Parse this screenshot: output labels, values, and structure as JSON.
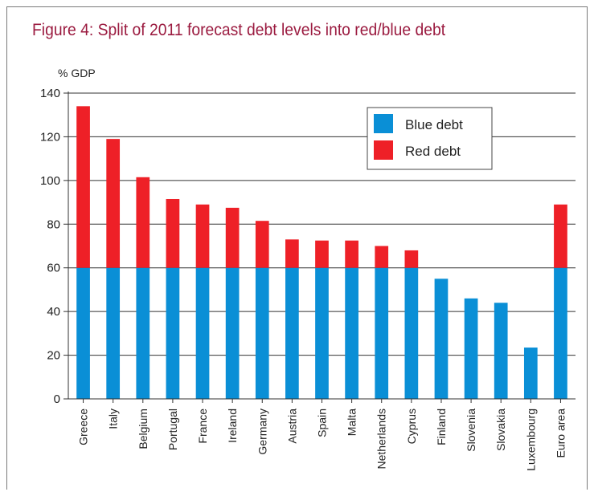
{
  "title": "Figure 4: Split of 2011 forecast debt levels into red/blue debt",
  "chart_data": {
    "type": "bar",
    "stacked": true,
    "title": "Figure 4: Split of 2011 forecast debt levels into red/blue debt",
    "ylabel": "% GDP",
    "xlabel": "",
    "ylim": [
      0,
      140
    ],
    "yticks": [
      0,
      20,
      40,
      60,
      80,
      100,
      120,
      140
    ],
    "grid": true,
    "legend_position": "top-right",
    "categories": [
      "Greece",
      "Italy",
      "Belgium",
      "Portugal",
      "France",
      "Ireland",
      "Germany",
      "Austria",
      "Spain",
      "Malta",
      "Netherlands",
      "Cyprus",
      "Finland",
      "Slovenia",
      "Slovakia",
      "Luxembourg",
      "Euro area"
    ],
    "series": [
      {
        "name": "Blue debt",
        "color": "#0a8fd6",
        "values": [
          60,
          60,
          60,
          60,
          60,
          60,
          60,
          60,
          60,
          60,
          60,
          60,
          55,
          46,
          44,
          23.5,
          60
        ]
      },
      {
        "name": "Red debt",
        "color": "#ee2027",
        "values": [
          74,
          59,
          41.5,
          31.5,
          29,
          27.5,
          21.5,
          13,
          12.5,
          12.5,
          10,
          8,
          0,
          0,
          0,
          0,
          29
        ]
      }
    ]
  }
}
